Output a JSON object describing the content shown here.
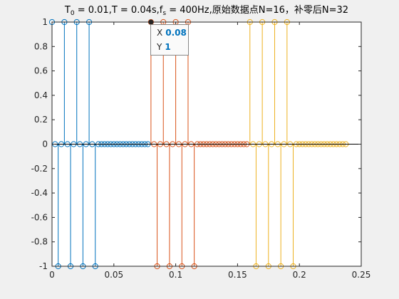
{
  "chart_data": {
    "type": "stem",
    "title": {
      "part1": "T",
      "sub1": "0",
      "part2": " = 0.01,T = 0.04s,f",
      "sub2": "s",
      "part3": " = 400Hz,原始数据点N=16，补零后N=32"
    },
    "xlim": [
      0,
      0.25
    ],
    "ylim": [
      -1,
      1
    ],
    "xticks": [
      "0",
      "0.05",
      "0.1",
      "0.15",
      "0.2",
      "0.25"
    ],
    "yticks": [
      "1",
      "0.8",
      "0.6",
      "0.4",
      "0.2",
      "0",
      "-0.2",
      "-0.4",
      "-0.6",
      "-0.8",
      "-1"
    ],
    "colors": [
      "#0072bd",
      "#d95319",
      "#edb120"
    ],
    "series": [
      {
        "x": [
          0.0,
          0.0025,
          0.005,
          0.0075,
          0.01,
          0.0125,
          0.015,
          0.0175,
          0.02,
          0.0225,
          0.025,
          0.0275,
          0.03,
          0.0325,
          0.035,
          0.0375,
          0.04,
          0.0425,
          0.045,
          0.0475,
          0.05,
          0.0525,
          0.055,
          0.0575,
          0.06,
          0.0625,
          0.065,
          0.0675,
          0.07,
          0.0725,
          0.075,
          0.0775
        ],
        "y": [
          1,
          0,
          -1,
          0,
          1,
          0,
          -1,
          0,
          1,
          0,
          -1,
          0,
          1,
          0,
          -1,
          0,
          0,
          0,
          0,
          0,
          0,
          0,
          0,
          0,
          0,
          0,
          0,
          0,
          0,
          0,
          0,
          0
        ]
      },
      {
        "x": [
          0.08,
          0.0825,
          0.085,
          0.0875,
          0.09,
          0.0925,
          0.095,
          0.0975,
          0.1,
          0.1025,
          0.105,
          0.1075,
          0.11,
          0.1125,
          0.115,
          0.1175,
          0.12,
          0.1225,
          0.125,
          0.1275,
          0.13,
          0.1325,
          0.135,
          0.1375,
          0.14,
          0.1425,
          0.145,
          0.1475,
          0.15,
          0.1525,
          0.155,
          0.1575
        ],
        "y": [
          1,
          0,
          -1,
          0,
          1,
          0,
          -1,
          0,
          1,
          0,
          -1,
          0,
          1,
          0,
          -1,
          0,
          0,
          0,
          0,
          0,
          0,
          0,
          0,
          0,
          0,
          0,
          0,
          0,
          0,
          0,
          0,
          0
        ]
      },
      {
        "x": [
          0.16,
          0.1625,
          0.165,
          0.1675,
          0.17,
          0.1725,
          0.175,
          0.1775,
          0.18,
          0.1825,
          0.185,
          0.1875,
          0.19,
          0.1925,
          0.195,
          0.1975,
          0.2,
          0.2025,
          0.205,
          0.2075,
          0.21,
          0.2125,
          0.215,
          0.2175,
          0.22,
          0.2225,
          0.225,
          0.2275,
          0.23,
          0.2325,
          0.235,
          0.2375
        ],
        "y": [
          1,
          0,
          -1,
          0,
          1,
          0,
          -1,
          0,
          1,
          0,
          -1,
          0,
          1,
          0,
          -1,
          0,
          0,
          0,
          0,
          0,
          0,
          0,
          0,
          0,
          0,
          0,
          0,
          0,
          0,
          0,
          0,
          0
        ]
      }
    ],
    "baseline": 0,
    "datatip": {
      "x_label": "X",
      "x_value": "0.08",
      "y_label": "Y",
      "y_value": "1",
      "at": [
        0.08,
        1
      ]
    }
  }
}
